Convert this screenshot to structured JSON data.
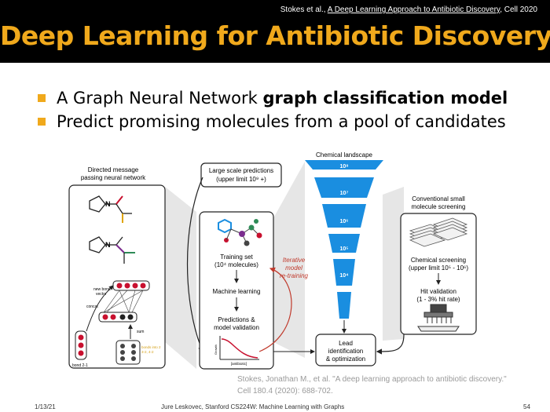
{
  "header": {
    "citation_prefix": "Stokes et al., ",
    "citation_link": "A Deep Learning Approach to Antibiotic Discovery",
    "citation_suffix": ", Cell 2020",
    "title": "Deep Learning for Antibiotic Discovery"
  },
  "bullets": [
    {
      "text_plain": "A Graph Neural Network ",
      "text_bold": "graph classification model"
    },
    {
      "text_plain": "Predict promising molecules from a pool of candidates",
      "text_bold": ""
    }
  ],
  "figure": {
    "dmpnn_title_1": "Directed message",
    "dmpnn_title_2": "passing neural network",
    "new_bond_vector_1": "new bond",
    "new_bond_vector_2": "vector",
    "concat": "concat",
    "sum": "sum",
    "bond_2_1": "bond 2-1",
    "bonds_into_2_1": "bonds into 2",
    "bonds_into_2_2": "3-2, 4-2",
    "large_scale_1": "Large scale predictions",
    "large_scale_2": "(upper limit 10⁹ +)",
    "training_set_1": "Training set",
    "training_set_2": "(10⁴ molecules)",
    "machine_learning": "Machine learning",
    "predictions_1": "Predictions &",
    "predictions_2": "model validation",
    "growth_axis": "Growth",
    "antibiotic_axis": "[antibiotic]",
    "iterative_1": "Iterative",
    "iterative_2": "model",
    "iterative_3": "re-training",
    "landscape_title": "Chemical landscape",
    "funnel_labels": [
      "10⁸",
      "10⁷",
      "10⁶",
      "10⁵",
      "10⁴"
    ],
    "lead_1": "Lead",
    "lead_2": "identification",
    "lead_3": "& optimization",
    "conventional_1": "Conventional small",
    "conventional_2": "molecule screening",
    "chem_screen_1": "Chemical screening",
    "chem_screen_2": "(upper limit 10⁵ - 10⁶)",
    "hit_val_1": "Hit validation",
    "hit_val_2": "(1 - 3% hit rate)",
    "colors": {
      "funnel": "#1a8ee0",
      "retrain": "#c0392b",
      "node_red": "#c8102e"
    }
  },
  "reference": {
    "line1": "Stokes, Jonathan M., et al. \"A deep learning approach to antibiotic discovery.\"",
    "line2": "Cell 180.4 (2020): 688-702."
  },
  "footer": {
    "date": "1/13/21",
    "course": "Jure Leskovec, Stanford CS224W: Machine Learning with Graphs",
    "page": "54"
  }
}
